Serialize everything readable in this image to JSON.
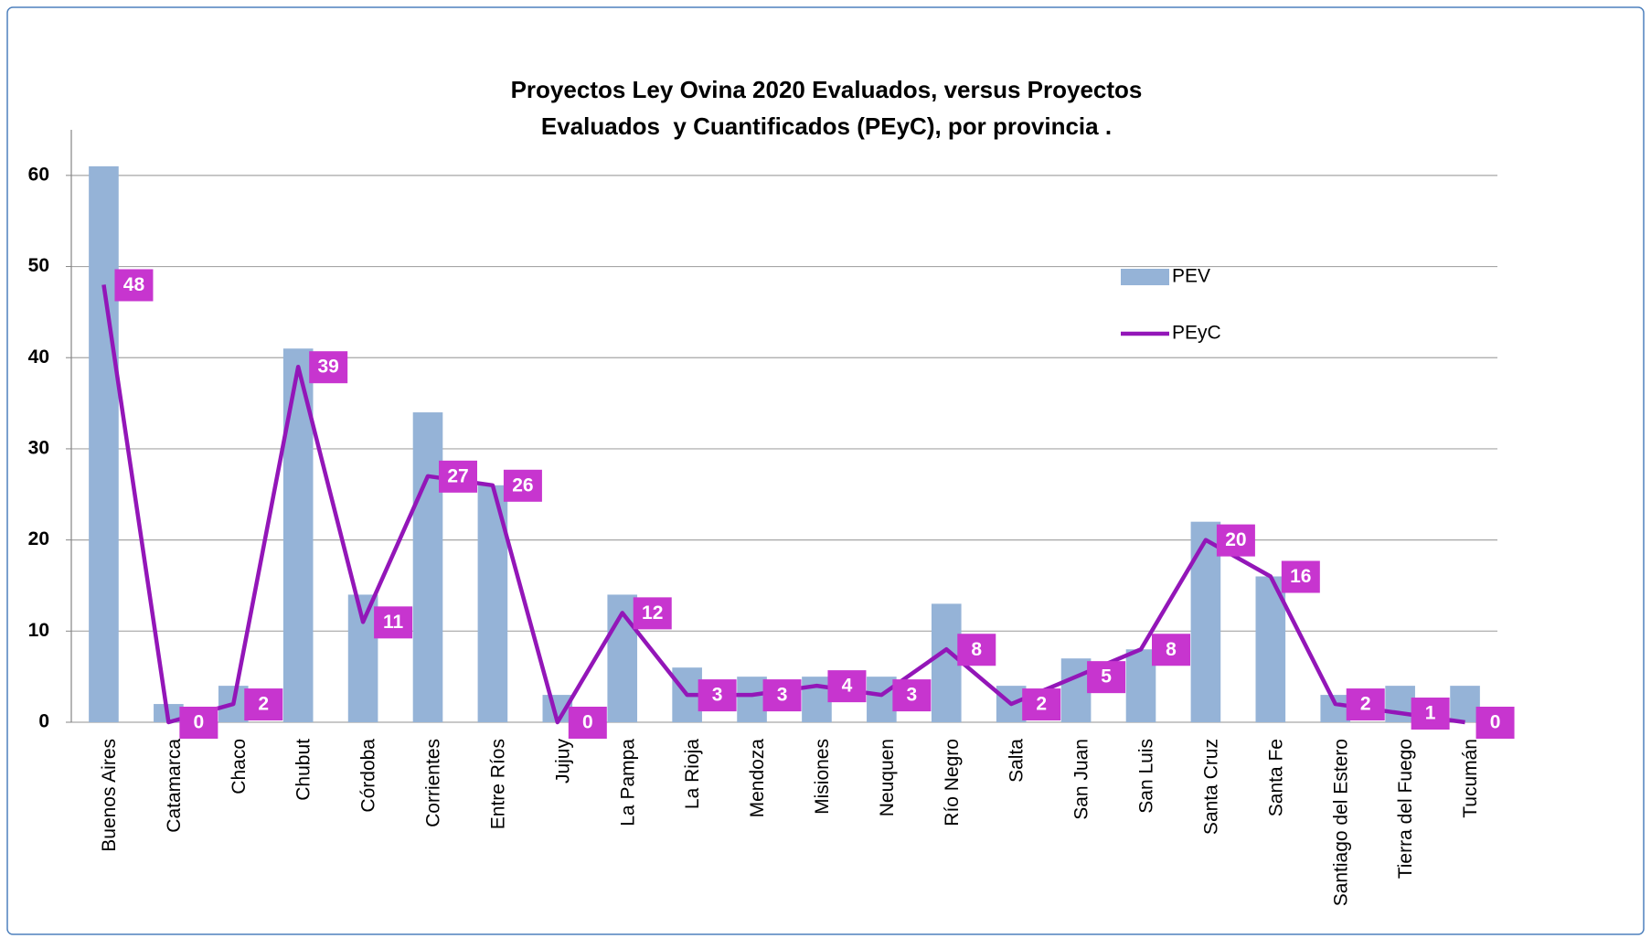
{
  "chart_data": {
    "type": "bar_line",
    "title": "Proyectos Ley Ovina 2020 Evaluados, versus Proyectos Evaluados  y Cuantificados (PEyC), por provincia .",
    "categories": [
      "Buenos Aires",
      "Catamarca",
      "Chaco",
      "Chubut",
      "Córdoba",
      "Corrientes",
      "Entre Ríos",
      "Jujuy",
      "La Pampa",
      "La Rioja",
      "Mendoza",
      "Misiones",
      "Neuquen",
      "Río Negro",
      "Salta",
      "San Juan",
      "San Luis",
      "Santa Cruz",
      "Santa Fe",
      "Santiago del Estero",
      "Tierra del Fuego",
      "Tucumán"
    ],
    "series": [
      {
        "name": "PEV",
        "type": "bar",
        "color": "#95b3d7",
        "values": [
          61,
          2,
          4,
          41,
          14,
          34,
          26,
          3,
          14,
          6,
          5,
          5,
          5,
          13,
          4,
          7,
          8,
          22,
          16,
          3,
          4,
          4
        ]
      },
      {
        "name": "PEyC",
        "type": "line",
        "color": "#9316b8",
        "label_color": "#c735cf",
        "values": [
          48,
          0,
          2,
          39,
          11,
          27,
          26,
          0,
          12,
          3,
          3,
          4,
          3,
          8,
          2,
          5,
          8,
          20,
          16,
          2,
          1,
          0
        ]
      }
    ],
    "ylim": [
      0,
      65
    ],
    "yticks": [
      0,
      10,
      20,
      30,
      40,
      50,
      60
    ],
    "grid": true
  }
}
